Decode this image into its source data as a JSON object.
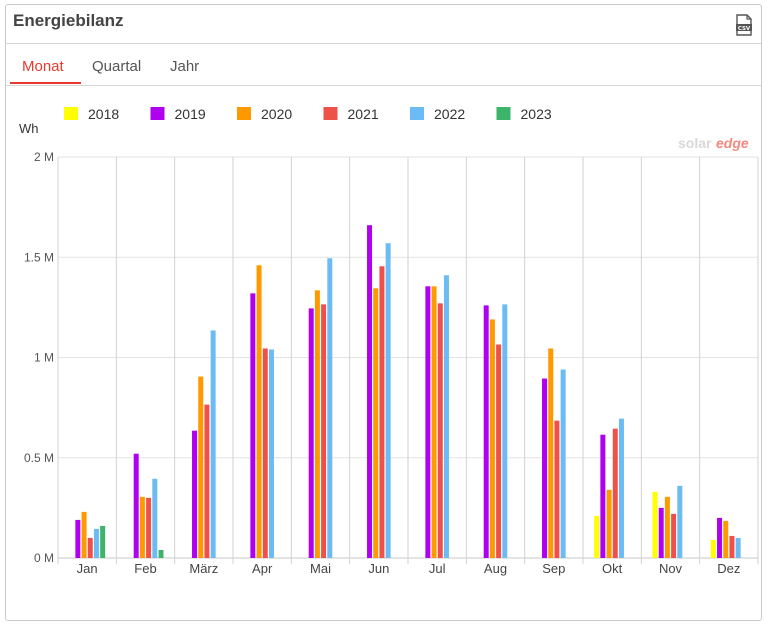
{
  "panel": {
    "title": "Energiebilanz",
    "export_icon": "csv-file-icon"
  },
  "tabs": [
    {
      "label": "Monat",
      "active": true
    },
    {
      "label": "Quartal",
      "active": false
    },
    {
      "label": "Jahr",
      "active": false
    }
  ],
  "watermark": {
    "part1": "solar",
    "part2": "edge"
  },
  "colors": {
    "accent": "#e63a2e",
    "grid": "#e3e3e3"
  },
  "chart_data": {
    "type": "bar",
    "ylabel": "Wh",
    "ylim": [
      0,
      2000000
    ],
    "yticks": [
      0,
      500000,
      1000000,
      1500000,
      2000000
    ],
    "ytick_labels": [
      "0 M",
      "0.5 M",
      "1 M",
      "1.5 M",
      "2 M"
    ],
    "categories": [
      "Jan",
      "Feb",
      "März",
      "Apr",
      "Mai",
      "Jun",
      "Jul",
      "Aug",
      "Sep",
      "Okt",
      "Nov",
      "Dez"
    ],
    "legend_position": "top-left",
    "series": [
      {
        "name": "2018",
        "color": "#ffff00",
        "values": [
          null,
          null,
          null,
          null,
          null,
          null,
          null,
          null,
          null,
          210000,
          330000,
          90000
        ]
      },
      {
        "name": "2019",
        "color": "#b000f0",
        "values": [
          190000,
          520000,
          635000,
          1320000,
          1245000,
          1660000,
          1355000,
          1260000,
          895000,
          615000,
          250000,
          200000
        ]
      },
      {
        "name": "2020",
        "color": "#ff9900",
        "values": [
          230000,
          305000,
          905000,
          1460000,
          1335000,
          1345000,
          1355000,
          1190000,
          1045000,
          340000,
          305000,
          185000
        ]
      },
      {
        "name": "2021",
        "color": "#f0504a",
        "values": [
          100000,
          300000,
          765000,
          1045000,
          1265000,
          1455000,
          1270000,
          1065000,
          685000,
          645000,
          220000,
          110000
        ]
      },
      {
        "name": "2022",
        "color": "#6bbcf5",
        "values": [
          145000,
          395000,
          1135000,
          1040000,
          1495000,
          1570000,
          1410000,
          1265000,
          940000,
          695000,
          360000,
          100000
        ]
      },
      {
        "name": "2023",
        "color": "#3cb56a",
        "values": [
          160000,
          40000,
          null,
          null,
          null,
          null,
          null,
          null,
          null,
          null,
          null,
          null
        ]
      }
    ]
  }
}
